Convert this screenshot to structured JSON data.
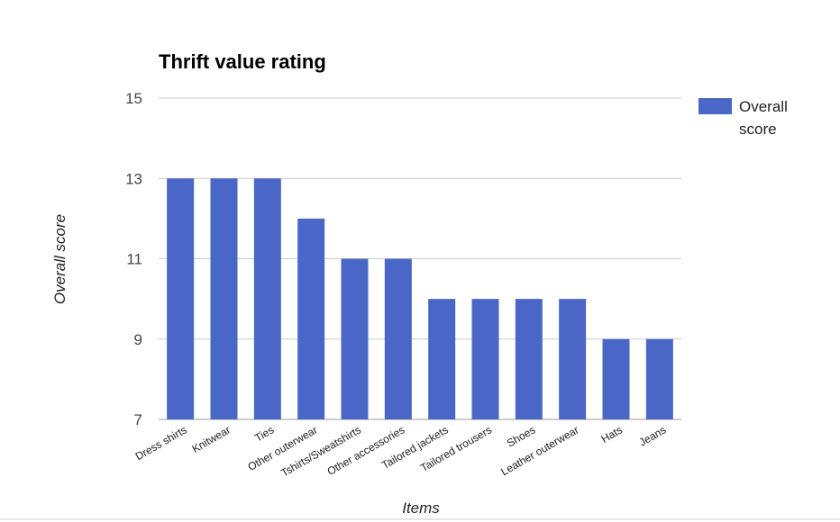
{
  "chart_data": {
    "type": "bar",
    "title": "Thrift value rating",
    "x_label": "Items",
    "y_label": "Overall score",
    "categories": [
      "Dress shirts",
      "Knitwear",
      "Ties",
      "Other outerwear",
      "Tshirts/Sweatshirts",
      "Other accessories",
      "Tailored jackets",
      "Tailored trousers",
      "Shoes",
      "Leather outerwear",
      "Hats",
      "Jeans"
    ],
    "series": [
      {
        "name": "Overall score",
        "color": "#4a67c7",
        "values": [
          13,
          13,
          13,
          12,
          11,
          11,
          10,
          10,
          10,
          10,
          9,
          9
        ]
      }
    ],
    "ylim": [
      7,
      15
    ],
    "yticks": [
      7,
      9,
      11,
      13,
      15
    ],
    "grid": true,
    "legend": "right"
  }
}
